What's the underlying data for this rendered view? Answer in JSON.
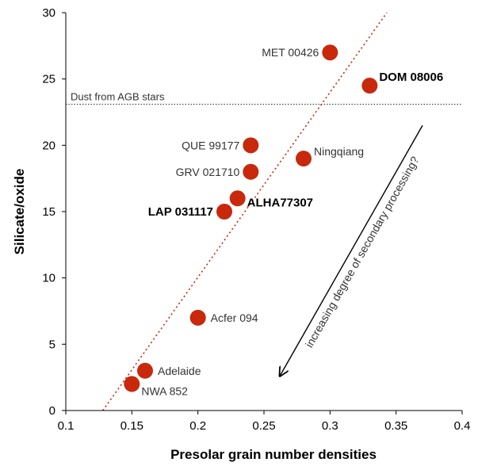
{
  "chart_data": {
    "type": "scatter",
    "title": "",
    "xlabel": "Presolar grain number densities",
    "ylabel": "Silicate/oxide",
    "xlim": [
      0.1,
      0.4
    ],
    "ylim": [
      0,
      30
    ],
    "xticks": [
      0.1,
      0.15,
      0.2,
      0.25,
      0.3,
      0.35,
      0.4
    ],
    "xtick_labels": [
      "0.1",
      "0.15",
      "0.2",
      "0.25",
      "0.3",
      "0.35",
      "0.4"
    ],
    "yticks": [
      0,
      5,
      10,
      15,
      20,
      25,
      30
    ],
    "ytick_labels": [
      "0",
      "5",
      "10",
      "15",
      "20",
      "25",
      "30"
    ],
    "grid": false,
    "colors": {
      "marker": "#c8280c",
      "trend": "#c8280c",
      "axis": "#000000",
      "annotation": "#333333"
    },
    "points": [
      {
        "label": "MET 00426",
        "x": 0.3,
        "y": 27,
        "bold": false
      },
      {
        "label": "DOM 08006",
        "x": 0.33,
        "y": 24.5,
        "bold": true
      },
      {
        "label": "QUE 99177",
        "x": 0.24,
        "y": 20,
        "bold": false
      },
      {
        "label": "Ningqiang",
        "x": 0.28,
        "y": 19,
        "bold": false
      },
      {
        "label": "GRV 021710",
        "x": 0.24,
        "y": 18,
        "bold": false
      },
      {
        "label": "ALHA77307",
        "x": 0.23,
        "y": 16,
        "bold": true
      },
      {
        "label": "LAP 031117",
        "x": 0.22,
        "y": 15,
        "bold": true
      },
      {
        "label": "Acfer 094",
        "x": 0.2,
        "y": 7,
        "bold": false
      },
      {
        "label": "Adelaide",
        "x": 0.16,
        "y": 3,
        "bold": false
      },
      {
        "label": "NWA 852",
        "x": 0.15,
        "y": 2,
        "bold": false
      }
    ],
    "trendline": {
      "style": "dotted",
      "from": {
        "x": 0.128,
        "y": 0
      },
      "to": {
        "x": 0.343,
        "y": 30
      }
    },
    "reference_line": {
      "y": 23.1,
      "style": "dotted",
      "label": "Dust from AGB stars"
    },
    "arrow": {
      "label": "increasing degree of secondary processing?",
      "from": {
        "x": 0.37,
        "y": 21.5
      },
      "to": {
        "x": 0.262,
        "y": 2.6
      }
    }
  }
}
